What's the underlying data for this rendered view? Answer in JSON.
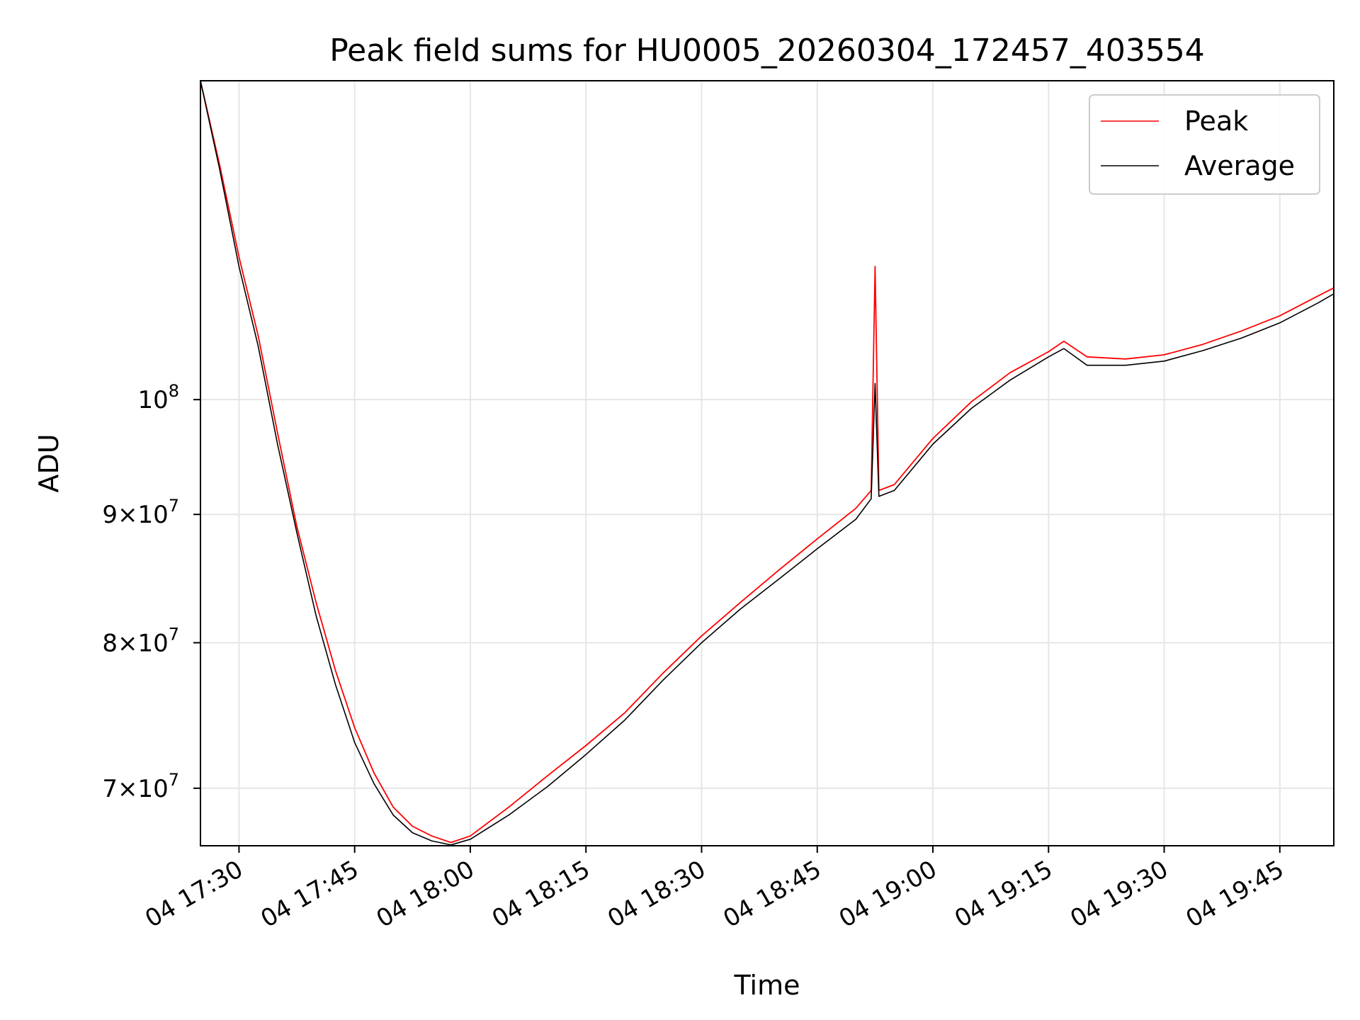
{
  "chart_data": {
    "type": "line",
    "title": "Peak field sums for HU0005_20260304_172457_403554",
    "xlabel": "Time",
    "ylabel": "ADU",
    "yscale": "log",
    "grid": true,
    "legend_position": "top-right",
    "x_range": [
      "2026-03-04 17:25",
      "2026-03-04 19:52"
    ],
    "ylim": [
      66400000,
      134000000
    ],
    "x_ticks": [
      {
        "time": "17:30",
        "label": "04 17:30"
      },
      {
        "time": "17:45",
        "label": "04 17:45"
      },
      {
        "time": "18:00",
        "label": "04 18:00"
      },
      {
        "time": "18:15",
        "label": "04 18:15"
      },
      {
        "time": "18:30",
        "label": "04 18:30"
      },
      {
        "time": "18:45",
        "label": "04 18:45"
      },
      {
        "time": "19:00",
        "label": "04 19:00"
      },
      {
        "time": "19:15",
        "label": "04 19:15"
      },
      {
        "time": "19:30",
        "label": "04 19:30"
      },
      {
        "time": "19:45",
        "label": "04 19:45"
      }
    ],
    "y_ticks": [
      {
        "value": 70000000,
        "mantissa": "7",
        "exponent": "7"
      },
      {
        "value": 80000000,
        "mantissa": "8",
        "exponent": "7"
      },
      {
        "value": 90000000,
        "mantissa": "9",
        "exponent": "7"
      },
      {
        "value": 100000000,
        "mantissa": "",
        "exponent": "8"
      }
    ],
    "series": [
      {
        "name": "Peak",
        "color": "#ff0000",
        "x": [
          "17:25:00",
          "17:27:30",
          "17:30:00",
          "17:32:30",
          "17:35:00",
          "17:37:30",
          "17:40:00",
          "17:42:30",
          "17:45:00",
          "17:47:30",
          "17:50:00",
          "17:52:30",
          "17:55:00",
          "17:57:30",
          "18:00:00",
          "18:05:00",
          "18:10:00",
          "18:15:00",
          "18:20:00",
          "18:25:00",
          "18:30:00",
          "18:35:00",
          "18:40:00",
          "18:45:00",
          "18:50:00",
          "18:52:00",
          "18:52:30",
          "18:53:00",
          "18:55:00",
          "19:00:00",
          "19:05:00",
          "19:10:00",
          "19:15:00",
          "19:17:00",
          "19:20:00",
          "19:25:00",
          "19:30:00",
          "19:35:00",
          "19:40:00",
          "19:45:00",
          "19:50:00",
          "19:52:00"
        ],
        "y": [
          134000000,
          124000000,
          114000000,
          106000000,
          97000000,
          89000000,
          83000000,
          78000000,
          74000000,
          71000000,
          68800000,
          67600000,
          67000000,
          66600000,
          67000000,
          68800000,
          70800000,
          72800000,
          75000000,
          77800000,
          80500000,
          83000000,
          85500000,
          88000000,
          90500000,
          92000000,
          113000000,
          92000000,
          92500000,
          96500000,
          99800000,
          102500000,
          104500000,
          105500000,
          104000000,
          103800000,
          104200000,
          105200000,
          106500000,
          108000000,
          110000000,
          110800000
        ]
      },
      {
        "name": "Average",
        "color": "#000000",
        "x": [
          "17:25:00",
          "17:27:30",
          "17:30:00",
          "17:32:30",
          "17:35:00",
          "17:37:30",
          "17:40:00",
          "17:42:30",
          "17:45:00",
          "17:47:30",
          "17:50:00",
          "17:52:30",
          "17:55:00",
          "17:57:30",
          "18:00:00",
          "18:05:00",
          "18:10:00",
          "18:15:00",
          "18:20:00",
          "18:25:00",
          "18:30:00",
          "18:35:00",
          "18:40:00",
          "18:45:00",
          "18:50:00",
          "18:52:00",
          "18:52:30",
          "18:53:00",
          "18:55:00",
          "19:00:00",
          "19:05:00",
          "19:10:00",
          "19:15:00",
          "19:17:00",
          "19:20:00",
          "19:25:00",
          "19:30:00",
          "19:35:00",
          "19:40:00",
          "19:45:00",
          "19:50:00",
          "19:52:00"
        ],
        "y": [
          134000000,
          123500000,
          113000000,
          105000000,
          96000000,
          88500000,
          82000000,
          77000000,
          73000000,
          70300000,
          68300000,
          67200000,
          66700000,
          66450000,
          66800000,
          68300000,
          70100000,
          72200000,
          74500000,
          77300000,
          80000000,
          82500000,
          84800000,
          87200000,
          89600000,
          91300000,
          101500000,
          91500000,
          92000000,
          96000000,
          99200000,
          101800000,
          104000000,
          104800000,
          103200000,
          103200000,
          103600000,
          104600000,
          105800000,
          107300000,
          109300000,
          110200000
        ]
      }
    ]
  }
}
